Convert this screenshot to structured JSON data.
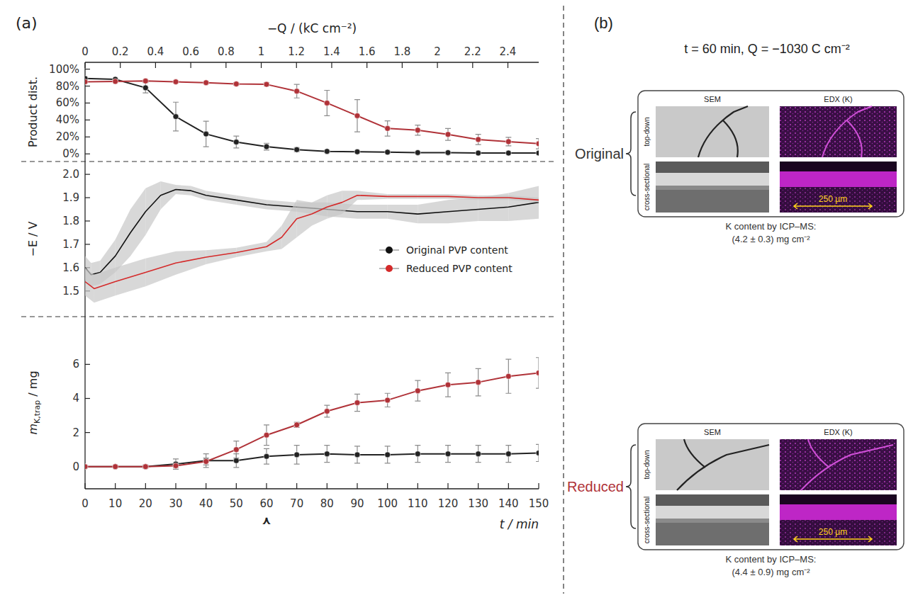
{
  "panel_a_label": "(a)",
  "chart_data": [
    {
      "type": "line",
      "y_label": "Product dist.",
      "x2_label": "−Q / (kC cm⁻²)",
      "xlim": [
        0,
        150
      ],
      "x2lim": [
        0,
        2.575
      ],
      "x2ticks": [
        0,
        0.2,
        0.4,
        0.6,
        0.8,
        1.0,
        1.2,
        1.4,
        1.6,
        1.8,
        2.0,
        2.2,
        2.4
      ],
      "ylim": [
        -9,
        108
      ],
      "yticks": [
        {
          "value": 0,
          "label": "0%"
        },
        {
          "value": 20,
          "label": "20%"
        },
        {
          "value": 40,
          "label": "40%"
        },
        {
          "value": 60,
          "label": "60%"
        },
        {
          "value": 80,
          "label": "80%"
        },
        {
          "value": 100,
          "label": "100%"
        }
      ],
      "series": [
        {
          "color": "#222222",
          "marker": "circle",
          "line_style": "solid",
          "x": [
            0,
            10,
            20,
            30,
            40,
            50,
            60,
            70,
            80,
            90,
            100,
            110,
            120,
            130,
            140,
            150
          ],
          "values": [
            89,
            88,
            78,
            44,
            23.5,
            14,
            8.5,
            5,
            3,
            2.5,
            2,
            1.5,
            1.5,
            1,
            1,
            1
          ],
          "errors": [
            0,
            0,
            6,
            17,
            15,
            7,
            4,
            2.5,
            1,
            0.5,
            0.5,
            0,
            0,
            0,
            0,
            0
          ]
        },
        {
          "color": "#b03238",
          "marker": "circle",
          "line_style": "solid",
          "x": [
            0,
            10,
            20,
            30,
            40,
            50,
            60,
            70,
            80,
            90,
            100,
            110,
            120,
            130,
            140,
            150
          ],
          "values": [
            85,
            85.5,
            86,
            85,
            84,
            82.5,
            82,
            74,
            60,
            45,
            30,
            28,
            23,
            17,
            14.5,
            12
          ],
          "errors": [
            0,
            0.5,
            1,
            1,
            1,
            1.5,
            2,
            8,
            15,
            19,
            9,
            6,
            7,
            6,
            5,
            6
          ]
        }
      ]
    },
    {
      "type": "line",
      "y_label": "−E / V",
      "xlim": [
        0,
        150
      ],
      "ylim": [
        1.39,
        2.055
      ],
      "yticks": [
        1.5,
        1.6,
        1.7,
        1.8,
        1.9,
        {
          "value": 2,
          "label": "2.0"
        }
      ],
      "legend": "lower right",
      "series": [
        {
          "name": "Original PVP content",
          "color": "#111111",
          "marker": "none",
          "line_style": "solid",
          "x": [
            0,
            2,
            5,
            10,
            15,
            20,
            25,
            30,
            35,
            40,
            50,
            60,
            70,
            80,
            90,
            100,
            110,
            120,
            130,
            140,
            150
          ],
          "values": [
            1.6,
            1.57,
            1.58,
            1.65,
            1.75,
            1.84,
            1.91,
            1.935,
            1.93,
            1.91,
            1.89,
            1.87,
            1.86,
            1.85,
            1.84,
            1.84,
            1.83,
            1.84,
            1.85,
            1.86,
            1.88
          ],
          "errors": [
            0.05,
            0.05,
            0.05,
            0.07,
            0.1,
            0.1,
            0.06,
            0.02,
            0.02,
            0.02,
            0.02,
            0.02,
            0.02,
            0.03,
            0.03,
            0.03,
            0.04,
            0.05,
            0.05,
            0.06,
            0.07
          ]
        },
        {
          "name": "Reduced PVP content",
          "color": "#d42a2a",
          "marker": "none",
          "line_style": "solid",
          "x": [
            0,
            3,
            10,
            20,
            30,
            40,
            50,
            60,
            65,
            70,
            75,
            80,
            85,
            90,
            100,
            110,
            120,
            130,
            140,
            150
          ],
          "values": [
            1.54,
            1.51,
            1.54,
            1.58,
            1.62,
            1.645,
            1.665,
            1.69,
            1.73,
            1.81,
            1.83,
            1.86,
            1.88,
            1.91,
            1.905,
            1.905,
            1.905,
            1.9,
            1.9,
            1.89
          ],
          "errors": [
            0.06,
            0.06,
            0.06,
            0.06,
            0.05,
            0.03,
            0.02,
            0.02,
            0.05,
            0.08,
            0.05,
            0.05,
            0.05,
            0.02,
            0.01,
            0.01,
            0.01,
            0.01,
            0.01,
            0.01
          ]
        }
      ]
    },
    {
      "type": "line",
      "y_label": [
        "m",
        "K,trap",
        " / mg"
      ],
      "x_label": "t / min",
      "xlim": [
        0,
        150
      ],
      "xticks": [
        0,
        10,
        20,
        30,
        40,
        50,
        60,
        70,
        80,
        90,
        100,
        110,
        120,
        130,
        140,
        150
      ],
      "ylim": [
        -1.3,
        8.8
      ],
      "yticks": [
        0,
        2,
        4,
        6
      ],
      "annotations": [
        {
          "text": "⋏",
          "x": 60
        }
      ],
      "series": [
        {
          "color": "#222222",
          "marker": "circle",
          "line_style": "solid",
          "x": [
            0,
            10,
            20,
            30,
            40,
            50,
            60,
            70,
            80,
            90,
            100,
            110,
            120,
            130,
            140,
            150
          ],
          "values": [
            0,
            0,
            0,
            0.15,
            0.35,
            0.35,
            0.6,
            0.7,
            0.75,
            0.7,
            0.7,
            0.75,
            0.75,
            0.75,
            0.75,
            0.8
          ],
          "errors": [
            0,
            0,
            0.1,
            0.3,
            0.4,
            0.4,
            0.45,
            0.55,
            0.5,
            0.5,
            0.5,
            0.5,
            0.5,
            0.5,
            0.5,
            0.5
          ]
        },
        {
          "color": "#b03238",
          "marker": "circle",
          "line_style": "solid",
          "x": [
            0,
            10,
            20,
            30,
            40,
            50,
            60,
            70,
            80,
            90,
            100,
            110,
            120,
            130,
            140,
            150
          ],
          "values": [
            0,
            0,
            0,
            0.05,
            0.3,
            1.0,
            1.85,
            2.45,
            3.25,
            3.75,
            3.9,
            4.45,
            4.8,
            4.95,
            5.3,
            5.5
          ],
          "errors": [
            0,
            0,
            0,
            0.1,
            0.2,
            0.5,
            0.6,
            0.15,
            0.35,
            0.5,
            0.4,
            0.6,
            0.7,
            0.8,
            1.0,
            0.9
          ]
        }
      ]
    }
  ],
  "panel_b": {
    "label": "(b)",
    "title": "t = 60 min,  Q = −1030 C cm⁻²",
    "column_heads": [
      "SEM",
      "EDX (K)"
    ],
    "row_heads": [
      "top-down",
      "cross-sectional"
    ],
    "samples": [
      {
        "name": "Original",
        "color": "#333333",
        "scale_bar": "250 µm",
        "icp_label": "K content by ICP–MS:",
        "icp_value": "(4.2 ± 0.3) mg cm⁻²"
      },
      {
        "name": "Reduced",
        "color": "#b03238",
        "scale_bar": "250 µm",
        "icp_label": "K content by ICP–MS:",
        "icp_value": "(4.4 ± 0.9) mg cm⁻²"
      }
    ]
  }
}
